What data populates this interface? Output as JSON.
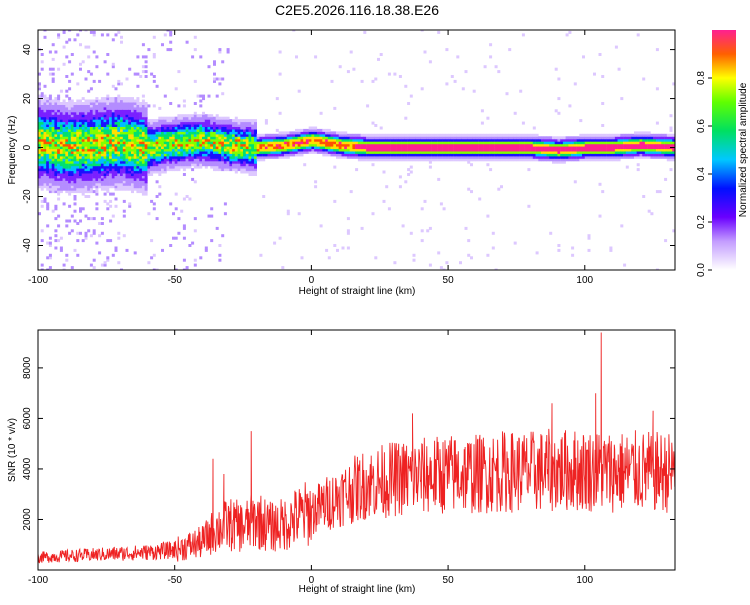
{
  "title": "C2E5.2026.116.18.38.E26",
  "chart_data": [
    {
      "type": "heatmap",
      "id": "spectrogram",
      "xlabel": "Height of straight line (km)",
      "ylabel": "Frequency (Hz)",
      "xlim": [
        -100,
        133
      ],
      "ylim": [
        -50,
        48
      ],
      "xticks": [
        -100,
        -50,
        0,
        50,
        100
      ],
      "yticks": [
        -40,
        -20,
        0,
        20,
        40
      ],
      "ridge": {
        "x": [
          -100,
          -90,
          -80,
          -70,
          -60,
          -50,
          -40,
          -30,
          -20,
          -10,
          0,
          5,
          10,
          20,
          30,
          40,
          50,
          60,
          70,
          80,
          90,
          100,
          110,
          120,
          133
        ],
        "freq": [
          2,
          0,
          1,
          2,
          0,
          2,
          3,
          1,
          0,
          1,
          3,
          2,
          1,
          0,
          0,
          0,
          0,
          0,
          0,
          0,
          -1,
          0,
          0,
          1,
          0
        ]
      },
      "colorbar": {
        "label": "Normalized spectral amplitude",
        "range": [
          0,
          1
        ],
        "ticks": [
          "0.0",
          "0.2",
          "0.4",
          "0.6",
          "0.8"
        ]
      }
    },
    {
      "type": "line",
      "id": "snr",
      "xlabel": "Height of straight line (km)",
      "ylabel": "SNR (10 * v/v)",
      "xlim": [
        -100,
        133
      ],
      "ylim": [
        0,
        9500
      ],
      "xticks": [
        -100,
        -50,
        0,
        50,
        100
      ],
      "yticks": [
        2000,
        4000,
        6000,
        8000
      ],
      "color": "#ee2222",
      "envelope": {
        "x": [
          -100,
          -90,
          -80,
          -70,
          -60,
          -50,
          -40,
          -35,
          -30,
          -25,
          -20,
          -15,
          -10,
          -5,
          0,
          10,
          20,
          30,
          40,
          50,
          60,
          70,
          80,
          90,
          100,
          110,
          120,
          133
        ],
        "y": [
          500,
          550,
          600,
          650,
          700,
          800,
          1100,
          1600,
          1800,
          1700,
          2000,
          1700,
          1800,
          2100,
          2300,
          2900,
          3400,
          3600,
          3700,
          3800,
          3800,
          3900,
          3900,
          3950,
          3950,
          3900,
          3900,
          3850
        ]
      },
      "spikes": [
        {
          "x": -36,
          "y": 4400
        },
        {
          "x": -32,
          "y": 3800
        },
        {
          "x": -22,
          "y": 5500
        },
        {
          "x": 37,
          "y": 6200
        },
        {
          "x": 88,
          "y": 6600
        },
        {
          "x": 106,
          "y": 9400
        },
        {
          "x": 104,
          "y": 7000
        },
        {
          "x": 125,
          "y": 6300
        }
      ]
    }
  ]
}
